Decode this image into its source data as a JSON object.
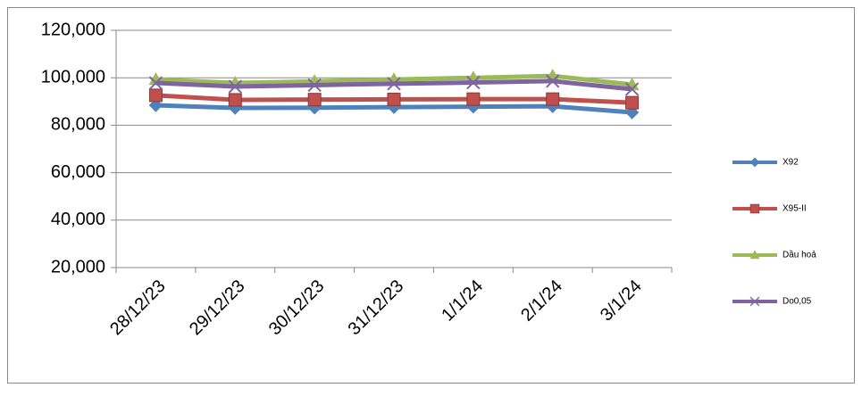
{
  "chart_data": {
    "type": "line",
    "categories": [
      "28/12/23",
      "29/12/23",
      "30/12/23",
      "31/12/23",
      "1/1/24",
      "2/1/24",
      "3/1/24"
    ],
    "series": [
      {
        "name": "X92",
        "color": "#4f81bd",
        "marker": "diamond",
        "values": [
          88400,
          87300,
          87400,
          87600,
          87800,
          88000,
          85400
        ]
      },
      {
        "name": "X95-II",
        "color": "#c0504d",
        "marker": "square",
        "values": [
          92600,
          90700,
          90800,
          90900,
          91000,
          91000,
          89500
        ]
      },
      {
        "name": "Dầu hoả",
        "color": "#9bbb59",
        "marker": "triangle",
        "values": [
          99300,
          97800,
          98500,
          99300,
          100000,
          100800,
          97100
        ]
      },
      {
        "name": "Do0,05",
        "color": "#8064a2",
        "marker": "x",
        "values": [
          97800,
          96300,
          96900,
          97500,
          98000,
          98600,
          95200
        ]
      }
    ],
    "ylim": [
      20000,
      120000
    ],
    "yticks": [
      {
        "value": 20000,
        "label": "20,000"
      },
      {
        "value": 40000,
        "label": "40,000"
      },
      {
        "value": 60000,
        "label": "60,000"
      },
      {
        "value": 80000,
        "label": "80,000"
      },
      {
        "value": 100000,
        "label": "100,000"
      },
      {
        "value": 120000,
        "label": "120,000"
      }
    ],
    "grid": true,
    "legend": "right"
  }
}
